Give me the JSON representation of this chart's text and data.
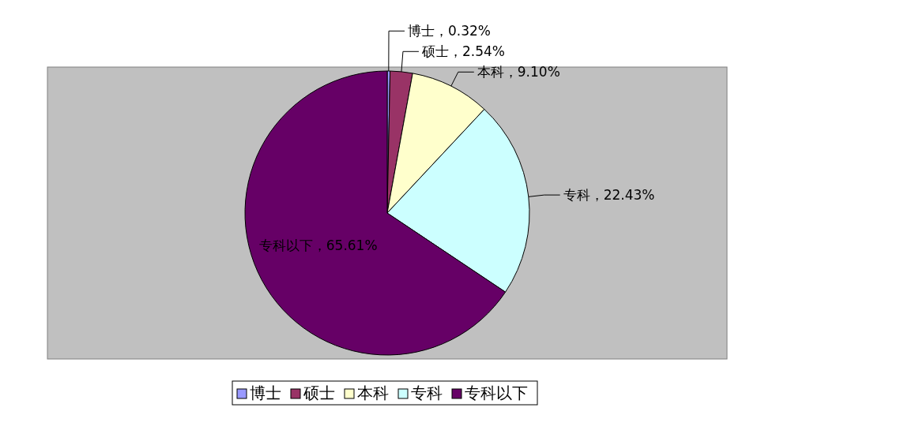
{
  "chart_data": {
    "type": "pie",
    "categories": [
      "博士",
      "硕士",
      "本科",
      "专科",
      "专科以下"
    ],
    "values": [
      0.32,
      2.54,
      9.1,
      22.43,
      65.61
    ],
    "colors": [
      "#9999ff",
      "#993366",
      "#ffffcc",
      "#ccffff",
      "#660066"
    ],
    "value_labels": [
      "博士，0.32%",
      "硕士，2.54%",
      "本科，9.10%",
      "专科，22.43%",
      "专科以下，65.61%"
    ],
    "legend": "bottom"
  }
}
